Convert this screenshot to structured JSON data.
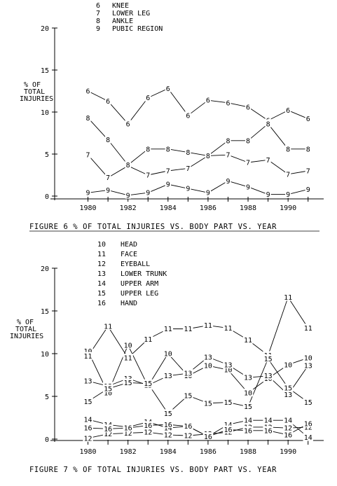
{
  "chart_data": [
    {
      "type": "line",
      "caption": "FIGURE  6  % OF TOTAL INJURIES VS. BODY PART VS. YEAR",
      "ylabel": [
        "% OF",
        "TOTAL",
        "INJURIES"
      ],
      "ylim": [
        0,
        20
      ],
      "yticks": [
        "0",
        "5",
        "10",
        "15",
        "20"
      ],
      "xlim": [
        1979,
        1991.5
      ],
      "xticks": [
        "1980",
        "1982",
        "1984",
        "1986",
        "1988",
        "1990"
      ],
      "legend": [
        {
          "marker": "6",
          "label": "KNEE"
        },
        {
          "marker": "7",
          "label": "LOWER LEG"
        },
        {
          "marker": "8",
          "label": "ANKLE"
        },
        {
          "marker": "9",
          "label": "PUBIC REGION"
        }
      ],
      "x": [
        1980,
        1981,
        1982,
        1983,
        1984,
        1985,
        1986,
        1987,
        1988,
        1989,
        1990,
        1991
      ],
      "series": [
        {
          "marker": "6",
          "values": [
            12.5,
            11.3,
            8.6,
            11.7,
            12.8,
            9.6,
            11.4,
            11.1,
            10.6,
            9.0,
            10.2,
            9.2
          ]
        },
        {
          "marker": "7",
          "values": [
            4.9,
            2.2,
            3.6,
            2.5,
            3.0,
            3.3,
            4.8,
            4.9,
            4.0,
            4.3,
            2.6,
            3.0
          ]
        },
        {
          "marker": "8",
          "values": [
            9.3,
            6.7,
            3.7,
            5.6,
            5.6,
            5.2,
            4.8,
            6.6,
            6.6,
            8.6,
            5.6,
            5.6
          ]
        },
        {
          "marker": "9",
          "values": [
            0.4,
            0.7,
            0.1,
            0.4,
            1.4,
            0.9,
            0.4,
            1.8,
            1.1,
            0.2,
            0.2,
            0.8
          ]
        }
      ]
    },
    {
      "type": "line",
      "caption": "FIGURE  7  % OF TOTAL INJURIES VS. BODY PART VS. YEAR",
      "ylabel": [
        "% OF",
        "TOTAL",
        "INJURIES"
      ],
      "ylim": [
        0,
        20
      ],
      "yticks": [
        "0",
        "5",
        "10",
        "15",
        "20"
      ],
      "xlim": [
        1979,
        1991.5
      ],
      "xticks": [
        "1980",
        "1982",
        "1984",
        "1986",
        "1988",
        "1990"
      ],
      "legend": [
        {
          "marker": "10",
          "label": "HEAD"
        },
        {
          "marker": "11",
          "label": "FACE"
        },
        {
          "marker": "12",
          "label": "EYEBALL"
        },
        {
          "marker": "13",
          "label": "LOWER TRUNK"
        },
        {
          "marker": "14",
          "label": "UPPER ARM"
        },
        {
          "marker": "15",
          "label": "UPPER LEG"
        },
        {
          "marker": "16",
          "label": "HAND"
        }
      ],
      "x": [
        1980,
        1981,
        1982,
        1983,
        1984,
        1985,
        1986,
        1987,
        1988,
        1989,
        1990,
        1991
      ],
      "series": [
        {
          "marker": "10",
          "values": [
            10.3,
            5.4,
            11.0,
            6.2,
            10.0,
            7.4,
            8.6,
            8.1,
            5.4,
            7.1,
            8.7,
            9.5
          ]
        },
        {
          "marker": "11",
          "values": [
            9.7,
            13.2,
            9.5,
            11.7,
            12.9,
            12.9,
            13.3,
            13.0,
            11.6,
            9.8,
            16.6,
            13.0
          ]
        },
        {
          "marker": "12",
          "values": [
            0.1,
            0.6,
            0.7,
            0.8,
            0.5,
            0.4,
            0.6,
            0.8,
            1.4,
            1.4,
            1.3,
            1.4
          ]
        },
        {
          "marker": "13",
          "values": [
            6.8,
            6.2,
            7.1,
            6.3,
            7.4,
            7.7,
            9.6,
            8.7,
            7.2,
            7.4,
            5.2,
            8.6
          ]
        },
        {
          "marker": "14",
          "values": [
            2.3,
            1.7,
            1.4,
            2.0,
            1.3,
            1.5,
            0.3,
            1.7,
            2.2,
            2.2,
            2.2,
            0.2
          ]
        },
        {
          "marker": "15",
          "values": [
            4.4,
            5.9,
            6.6,
            6.5,
            3.0,
            5.1,
            4.2,
            4.3,
            3.8,
            9.4,
            6.0,
            4.3
          ]
        },
        {
          "marker": "16",
          "values": [
            1.3,
            1.2,
            1.3,
            1.6,
            1.7,
            1.5,
            0.3,
            1.1,
            1.0,
            1.0,
            0.5,
            1.8
          ]
        }
      ]
    }
  ]
}
